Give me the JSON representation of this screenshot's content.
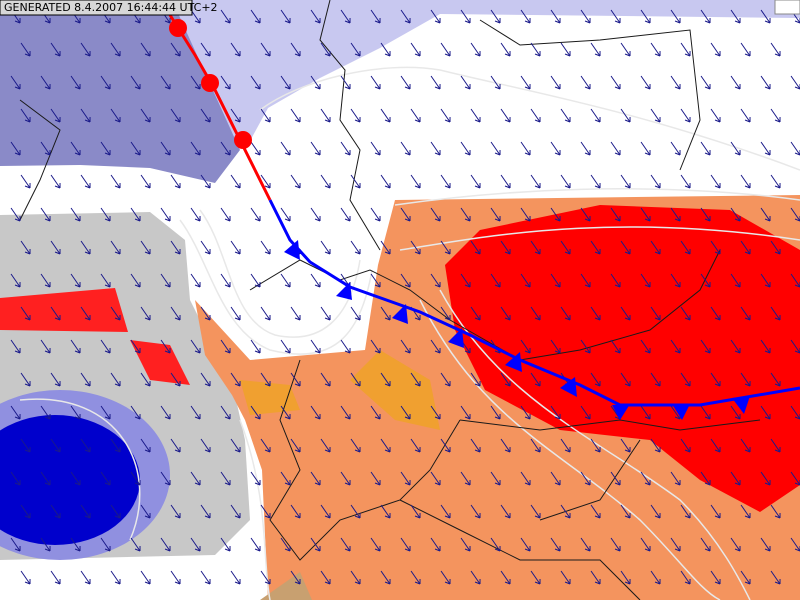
{
  "header": {
    "timestamp": "GENERATED 8.4.2007 16:44:44 UTC+2"
  }
}
